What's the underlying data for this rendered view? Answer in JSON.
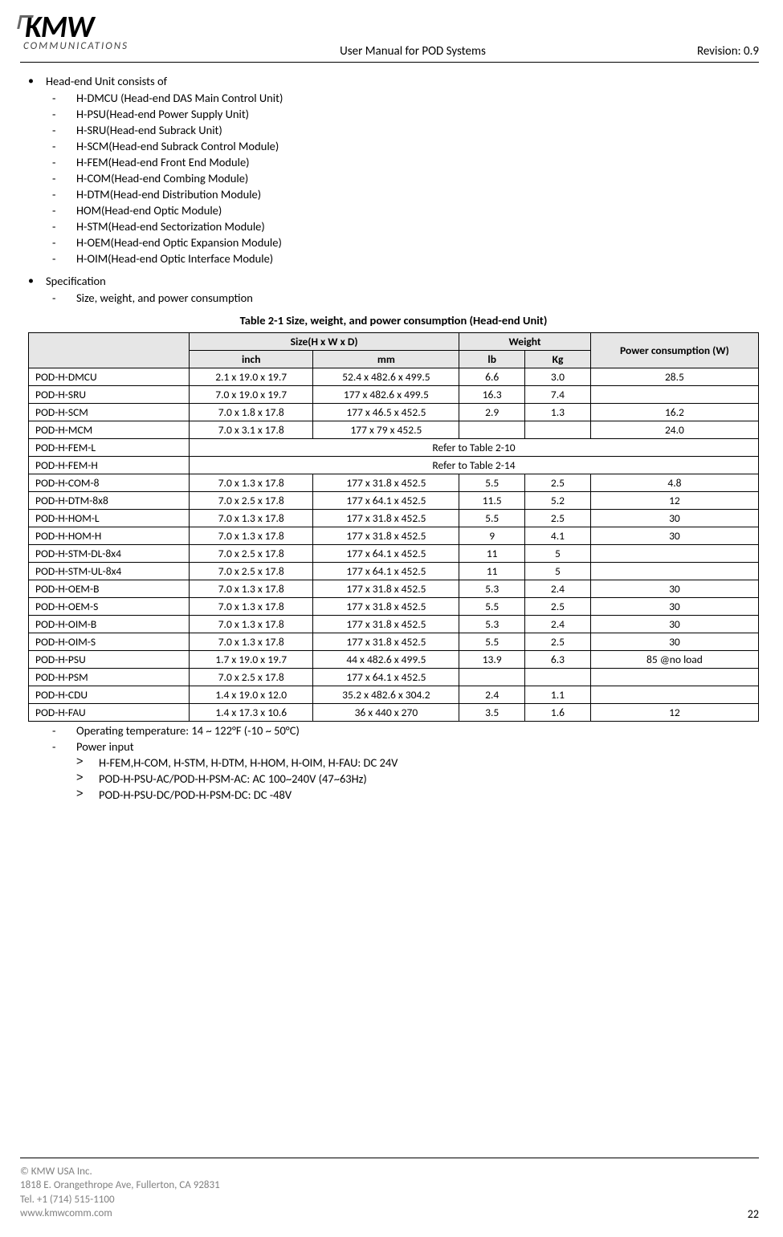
{
  "header": {
    "logo_main": "KMW",
    "logo_sub": "COMMUNICATIONS",
    "center": "User Manual for POD Systems",
    "right": "Revision: 0.9"
  },
  "section1": {
    "title": "Head-end Unit consists of",
    "items": [
      "H-DMCU (Head-end DAS Main Control Unit)",
      "H-PSU(Head-end Power Supply Unit)",
      "H-SRU(Head-end Subrack Unit)",
      "H-SCM(Head-end Subrack Control Module)",
      "H-FEM(Head-end Front End Module)",
      "H-COM(Head-end Combing Module)",
      "H-DTM(Head-end Distribution Module)",
      "HOM(Head-end Optic Module)",
      "H-STM(Head-end Sectorization Module)",
      "H-OEM(Head-end Optic Expansion Module)",
      "H-OIM(Head-end Optic Interface Module)"
    ]
  },
  "section2": {
    "title": "Specification",
    "sub1": "Size, weight, and power consumption",
    "table_title": "Table 2-1      Size, weight, and power consumption (Head-end Unit)",
    "col_size": "Size(H x W x D)",
    "col_weight": "Weight",
    "col_power": "Power consumption (W)",
    "col_inch": "inch",
    "col_mm": "mm",
    "col_lb": "lb",
    "col_kg": "Kg",
    "rows": [
      {
        "n": "POD-H-DMCU",
        "in": "2.1 x 19.0 x 19.7",
        "mm": "52.4 x 482.6 x 499.5",
        "lb": "6.6",
        "kg": "3.0",
        "pw": "28.5"
      },
      {
        "n": "POD-H-SRU",
        "in": "7.0 x 19.0 x 19.7",
        "mm": "177 x 482.6 x 499.5",
        "lb": "16.3",
        "kg": "7.4",
        "pw": ""
      },
      {
        "n": "POD-H-SCM",
        "in": "7.0 x 1.8 x 17.8",
        "mm": "177 x 46.5 x 452.5",
        "lb": "2.9",
        "kg": "1.3",
        "pw": "16.2"
      },
      {
        "n": "POD-H-MCM",
        "in": "7.0 x 3.1 x 17.8",
        "mm": "177 x 79 x 452.5",
        "lb": "",
        "kg": "",
        "pw": "24.0"
      },
      {
        "n": "POD-H-FEM-L",
        "refer": "Refer to Table 2-10"
      },
      {
        "n": "POD-H-FEM-H",
        "refer": "Refer to Table 2-14"
      },
      {
        "n": "POD-H-COM-8",
        "in": "7.0 x 1.3 x 17.8",
        "mm": "177 x 31.8 x 452.5",
        "lb": "5.5",
        "kg": "2.5",
        "pw": "4.8"
      },
      {
        "n": "POD-H-DTM-8x8",
        "in": "7.0 x 2.5 x 17.8",
        "mm": "177 x 64.1 x 452.5",
        "lb": "11.5",
        "kg": "5.2",
        "pw": "12"
      },
      {
        "n": "POD-H-HOM-L",
        "in": "7.0 x 1.3 x 17.8",
        "mm": "177 x 31.8 x 452.5",
        "lb": "5.5",
        "kg": "2.5",
        "pw": "30"
      },
      {
        "n": "POD-H-HOM-H",
        "in": "7.0 x 1.3 x 17.8",
        "mm": "177 x 31.8 x 452.5",
        "lb": "9",
        "kg": "4.1",
        "pw": "30"
      },
      {
        "n": "POD-H-STM-DL-8x4",
        "in": "7.0 x 2.5 x 17.8",
        "mm": "177 x 64.1 x 452.5",
        "lb": "11",
        "kg": "5",
        "pw": ""
      },
      {
        "n": "POD-H-STM-UL-8x4",
        "in": "7.0 x 2.5 x 17.8",
        "mm": "177 x 64.1 x 452.5",
        "lb": "11",
        "kg": "5",
        "pw": ""
      },
      {
        "n": "POD-H-OEM-B",
        "in": "7.0 x 1.3 x 17.8",
        "mm": "177 x 31.8 x 452.5",
        "lb": "5.3",
        "kg": "2.4",
        "pw": "30"
      },
      {
        "n": "POD-H-OEM-S",
        "in": "7.0 x 1.3 x 17.8",
        "mm": "177 x 31.8 x 452.5",
        "lb": "5.5",
        "kg": "2.5",
        "pw": "30"
      },
      {
        "n": "POD-H-OIM-B",
        "in": "7.0 x 1.3 x 17.8",
        "mm": "177 x 31.8 x 452.5",
        "lb": "5.3",
        "kg": "2.4",
        "pw": "30"
      },
      {
        "n": "POD-H-OIM-S",
        "in": "7.0 x 1.3 x 17.8",
        "mm": "177 x 31.8 x 452.5",
        "lb": "5.5",
        "kg": "2.5",
        "pw": "30"
      },
      {
        "n": "POD-H-PSU",
        "in": "1.7 x 19.0  x 19.7",
        "mm": "44 x 482.6 x 499.5",
        "lb": "13.9",
        "kg": "6.3",
        "pw": "85 @no load"
      },
      {
        "n": "POD-H-PSM",
        "in": "7.0 x 2.5 x 17.8",
        "mm": "177 x 64.1 x 452.5",
        "lb": "",
        "kg": "",
        "pw": ""
      },
      {
        "n": "POD-H-CDU",
        "in": "1.4 x 19.0 x 12.0",
        "mm": "35.2 x 482.6 x 304.2",
        "lb": "2.4",
        "kg": "1.1",
        "pw": ""
      },
      {
        "n": "POD-H-FAU",
        "in": "1.4 x 17.3 x 10.6",
        "mm": "36 x 440 x 270",
        "lb": "3.5",
        "kg": "1.6",
        "pw": "12"
      }
    ],
    "op_temp": "Operating temperature: 14 ~ 122°F (-10 ~ 50°C)",
    "power_input_label": "Power input",
    "power_inputs": [
      "H-FEM,H-COM, H-STM, H-DTM, H-HOM, H-OIM, H-FAU: DC 24V",
      "POD-H-PSU-AC/POD-H-PSM-AC: AC 100~240V (47~63Hz)",
      "POD-H-PSU-DC/POD-H-PSM-DC: DC -48V"
    ]
  },
  "footer": {
    "l1": "© KMW USA Inc.",
    "l2": "1818 E. Orangethrope Ave, Fullerton, CA 92831",
    "l3": "Tel. +1 (714) 515-1100",
    "l4": "www.kmwcomm.com",
    "page": "22"
  },
  "col_widths": {
    "name_pct": 22,
    "inch_pct": 17,
    "mm_pct": 20,
    "lb_pct": 9,
    "kg_pct": 9,
    "pw_pct": 23
  }
}
